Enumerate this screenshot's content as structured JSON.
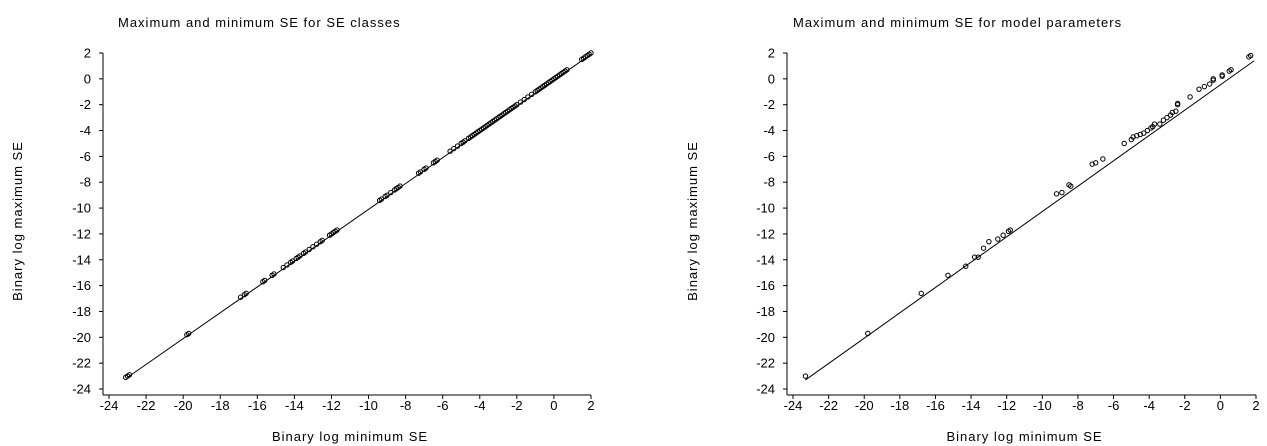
{
  "chart_data": [
    {
      "type": "scatter",
      "title": "Maximum and minimum SE for SE classes",
      "xlabel": "Binary log minimum SE",
      "ylabel": "Binary log maximum SE",
      "xlim": [
        -24,
        2
      ],
      "ylim": [
        -24,
        2
      ],
      "xticks": [
        "-24",
        "-22",
        "-20",
        "-18",
        "-16",
        "-14",
        "-12",
        "-10",
        "-8",
        "-6",
        "-4",
        "-2",
        "0",
        "2"
      ],
      "yticks": [
        "2",
        "0",
        "-2",
        "-4",
        "-6",
        "-8",
        "-10",
        "-12",
        "-14",
        "-16",
        "-18",
        "-20",
        "-22",
        "-24"
      ],
      "reference_line": [
        [
          -23,
          -23.1
        ],
        [
          2,
          1.9
        ]
      ],
      "points": [
        [
          -23.1,
          -23.1
        ],
        [
          -23,
          -23
        ],
        [
          -22.9,
          -22.9
        ],
        [
          -19.8,
          -19.8
        ],
        [
          -19.7,
          -19.7
        ],
        [
          -16.9,
          -16.9
        ],
        [
          -16.7,
          -16.7
        ],
        [
          -16.6,
          -16.6
        ],
        [
          -15.7,
          -15.7
        ],
        [
          -15.6,
          -15.6
        ],
        [
          -15.2,
          -15.2
        ],
        [
          -15.1,
          -15.1
        ],
        [
          -14.6,
          -14.6
        ],
        [
          -14.4,
          -14.4
        ],
        [
          -14.2,
          -14.2
        ],
        [
          -14.1,
          -14.1
        ],
        [
          -13.9,
          -13.9
        ],
        [
          -13.8,
          -13.8
        ],
        [
          -13.7,
          -13.7
        ],
        [
          -13.5,
          -13.5
        ],
        [
          -13.4,
          -13.4
        ],
        [
          -13.2,
          -13.2
        ],
        [
          -13,
          -13
        ],
        [
          -12.8,
          -12.8
        ],
        [
          -12.6,
          -12.6
        ],
        [
          -12.5,
          -12.5
        ],
        [
          -12.1,
          -12.1
        ],
        [
          -12,
          -12
        ],
        [
          -11.9,
          -11.9
        ],
        [
          -11.8,
          -11.8
        ],
        [
          -11.7,
          -11.7
        ],
        [
          -9.4,
          -9.4
        ],
        [
          -9.3,
          -9.3
        ],
        [
          -9.1,
          -9.1
        ],
        [
          -9,
          -9
        ],
        [
          -8.8,
          -8.8
        ],
        [
          -8.6,
          -8.6
        ],
        [
          -8.5,
          -8.5
        ],
        [
          -8.4,
          -8.4
        ],
        [
          -8.3,
          -8.3
        ],
        [
          -7.3,
          -7.3
        ],
        [
          -7.2,
          -7.2
        ],
        [
          -7,
          -7
        ],
        [
          -6.9,
          -6.9
        ],
        [
          -6.5,
          -6.5
        ],
        [
          -6.4,
          -6.4
        ],
        [
          -6.3,
          -6.3
        ],
        [
          -5.6,
          -5.6
        ],
        [
          -5.4,
          -5.4
        ],
        [
          -5.2,
          -5.2
        ],
        [
          -5,
          -5
        ],
        [
          -4.9,
          -4.9
        ],
        [
          -4.8,
          -4.8
        ],
        [
          -4.6,
          -4.6
        ],
        [
          -4.5,
          -4.5
        ],
        [
          -4.4,
          -4.4
        ],
        [
          -4.3,
          -4.3
        ],
        [
          -4.2,
          -4.2
        ],
        [
          -4.1,
          -4.1
        ],
        [
          -4,
          -4
        ],
        [
          -3.9,
          -3.9
        ],
        [
          -3.8,
          -3.8
        ],
        [
          -3.7,
          -3.7
        ],
        [
          -3.6,
          -3.6
        ],
        [
          -3.5,
          -3.5
        ],
        [
          -3.4,
          -3.4
        ],
        [
          -3.3,
          -3.3
        ],
        [
          -3.2,
          -3.2
        ],
        [
          -3.1,
          -3.1
        ],
        [
          -3,
          -3
        ],
        [
          -2.9,
          -2.9
        ],
        [
          -2.8,
          -2.8
        ],
        [
          -2.7,
          -2.7
        ],
        [
          -2.6,
          -2.6
        ],
        [
          -2.5,
          -2.5
        ],
        [
          -2.4,
          -2.4
        ],
        [
          -2.3,
          -2.3
        ],
        [
          -2.2,
          -2.2
        ],
        [
          -2.1,
          -2.1
        ],
        [
          -2,
          -2
        ],
        [
          -1.8,
          -1.8
        ],
        [
          -1.6,
          -1.6
        ],
        [
          -1.4,
          -1.4
        ],
        [
          -1.2,
          -1.2
        ],
        [
          -1,
          -1
        ],
        [
          -0.9,
          -0.9
        ],
        [
          -0.8,
          -0.8
        ],
        [
          -0.7,
          -0.7
        ],
        [
          -0.6,
          -0.6
        ],
        [
          -0.5,
          -0.5
        ],
        [
          -0.4,
          -0.4
        ],
        [
          -0.3,
          -0.3
        ],
        [
          -0.2,
          -0.2
        ],
        [
          -0.1,
          -0.1
        ],
        [
          0,
          0
        ],
        [
          0.1,
          0.1
        ],
        [
          0.2,
          0.2
        ],
        [
          0.3,
          0.3
        ],
        [
          0.4,
          0.4
        ],
        [
          0.5,
          0.5
        ],
        [
          0.6,
          0.6
        ],
        [
          0.7,
          0.7
        ],
        [
          1.5,
          1.5
        ],
        [
          1.6,
          1.6
        ],
        [
          1.7,
          1.7
        ],
        [
          1.8,
          1.8
        ],
        [
          1.9,
          1.9
        ],
        [
          2,
          2
        ]
      ]
    },
    {
      "type": "scatter",
      "title": "Maximum and minimum SE for model parameters",
      "xlabel": "Binary log minimum SE",
      "ylabel": "Binary log maximum SE",
      "xlim": [
        -24,
        2
      ],
      "ylim": [
        -24,
        2
      ],
      "xticks": [
        "-24",
        "-22",
        "-20",
        "-18",
        "-16",
        "-14",
        "-12",
        "-10",
        "-8",
        "-6",
        "-4",
        "-2",
        "0",
        "2"
      ],
      "yticks": [
        "2",
        "0",
        "-2",
        "-4",
        "-6",
        "-8",
        "-10",
        "-12",
        "-14",
        "-16",
        "-18",
        "-20",
        "-22",
        "-24"
      ],
      "reference_line": [
        [
          -23.3,
          -23.3
        ],
        [
          1.9,
          1.4
        ]
      ],
      "points": [
        [
          -23.3,
          -23
        ],
        [
          -19.8,
          -19.7
        ],
        [
          -16.8,
          -16.6
        ],
        [
          -15.3,
          -15.2
        ],
        [
          -14.3,
          -14.5
        ],
        [
          -13.8,
          -13.8
        ],
        [
          -13.6,
          -13.8
        ],
        [
          -13.3,
          -13.1
        ],
        [
          -13,
          -12.6
        ],
        [
          -12.5,
          -12.4
        ],
        [
          -12.2,
          -12.1
        ],
        [
          -11.9,
          -11.8
        ],
        [
          -11.8,
          -11.7
        ],
        [
          -9.2,
          -8.9
        ],
        [
          -8.9,
          -8.8
        ],
        [
          -8.5,
          -8.2
        ],
        [
          -8.4,
          -8.3
        ],
        [
          -7.2,
          -6.6
        ],
        [
          -7,
          -6.5
        ],
        [
          -6.6,
          -6.2
        ],
        [
          -5.4,
          -5
        ],
        [
          -5,
          -4.7
        ],
        [
          -4.9,
          -4.5
        ],
        [
          -4.7,
          -4.4
        ],
        [
          -4.5,
          -4.3
        ],
        [
          -4.3,
          -4.2
        ],
        [
          -4.1,
          -4
        ],
        [
          -3.9,
          -3.8
        ],
        [
          -3.8,
          -3.7
        ],
        [
          -3.7,
          -3.5
        ],
        [
          -3.4,
          -3.5
        ],
        [
          -3.2,
          -3.2
        ],
        [
          -3,
          -3
        ],
        [
          -2.8,
          -2.8
        ],
        [
          -2.7,
          -2.6
        ],
        [
          -2.5,
          -2.5
        ],
        [
          -2.4,
          -2
        ],
        [
          -2.4,
          -1.9
        ],
        [
          -1.7,
          -1.4
        ],
        [
          -1.2,
          -0.8
        ],
        [
          -0.9,
          -0.6
        ],
        [
          -0.6,
          -0.4
        ],
        [
          -0.4,
          -0.1
        ],
        [
          -0.4,
          0
        ],
        [
          0.1,
          0.2
        ],
        [
          0.1,
          0.3
        ],
        [
          0.5,
          0.6
        ],
        [
          0.6,
          0.7
        ],
        [
          1.6,
          1.7
        ],
        [
          1.7,
          1.8
        ]
      ]
    }
  ]
}
